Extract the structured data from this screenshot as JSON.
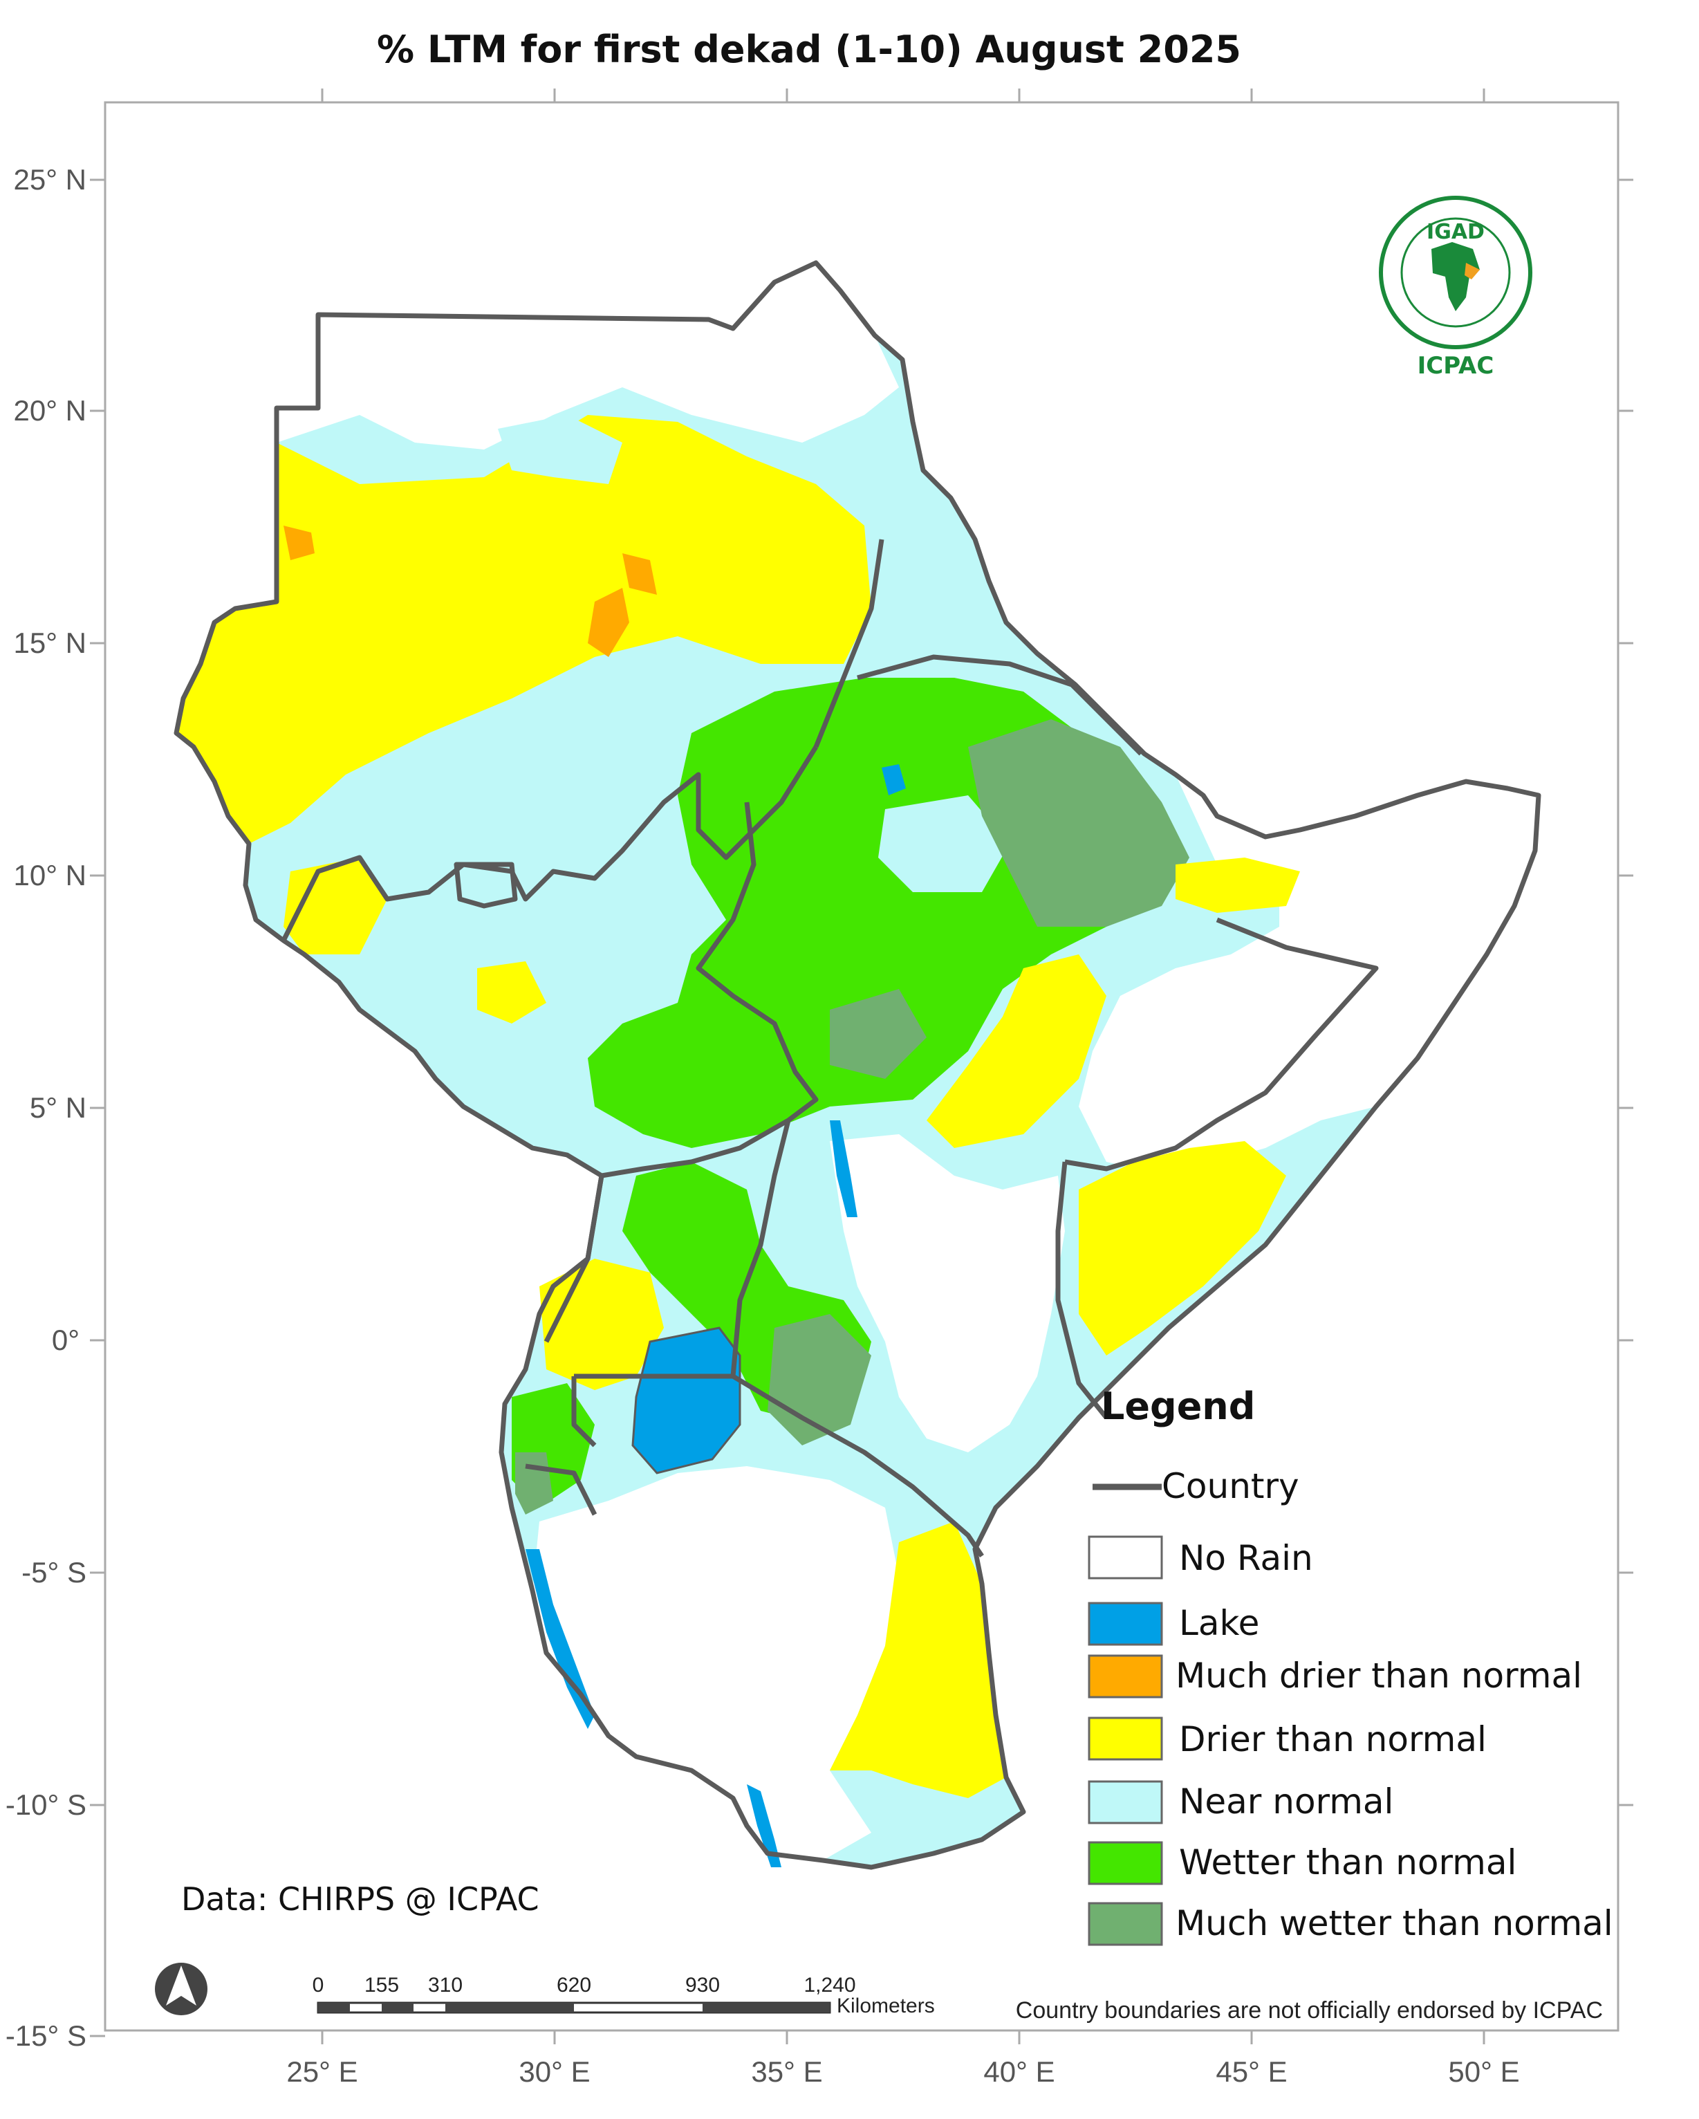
{
  "title": "% LTM  for   first  dekad (1-10)  August 2025",
  "axes": {
    "lat_labels": [
      "25° N",
      "20° N",
      "15° N",
      "10° N",
      "5° N",
      "0°",
      "-5° S",
      "-10° S",
      "-15° S"
    ],
    "lon_labels": [
      "25° E",
      "30° E",
      "35° E",
      "40° E",
      "45° E",
      "50° E"
    ]
  },
  "legend": {
    "title": "Legend",
    "country_label": "Country",
    "items": [
      {
        "label": "No Rain",
        "color": "#ffffff"
      },
      {
        "label": "Lake",
        "color": "#00a0e6"
      },
      {
        "label": "Much drier than normal",
        "color": "#ffaa00"
      },
      {
        "label": "Drier than normal",
        "color": "#ffff00"
      },
      {
        "label": "Near normal",
        "color": "#bff8f8"
      },
      {
        "label": "Wetter than normal",
        "color": "#44e600"
      },
      {
        "label": "Much wetter than normal",
        "color": "#70b070"
      }
    ]
  },
  "logo": {
    "top": "IGAD",
    "bottom": "ICPAC",
    "icon": "igad-emblem-icon"
  },
  "credit": "Data: CHIRPS @ ICPAC",
  "scale_bar": {
    "ticks": [
      "0",
      "155",
      "310",
      "620",
      "930",
      "1,240"
    ],
    "unit": "Kilometers"
  },
  "disclaimer": "Country boundaries are not officially endorsed by ICPAC",
  "north_arrow": "north-arrow-icon",
  "colors": {
    "border": "#5a5a5a",
    "frame": "#aaaaaa"
  }
}
